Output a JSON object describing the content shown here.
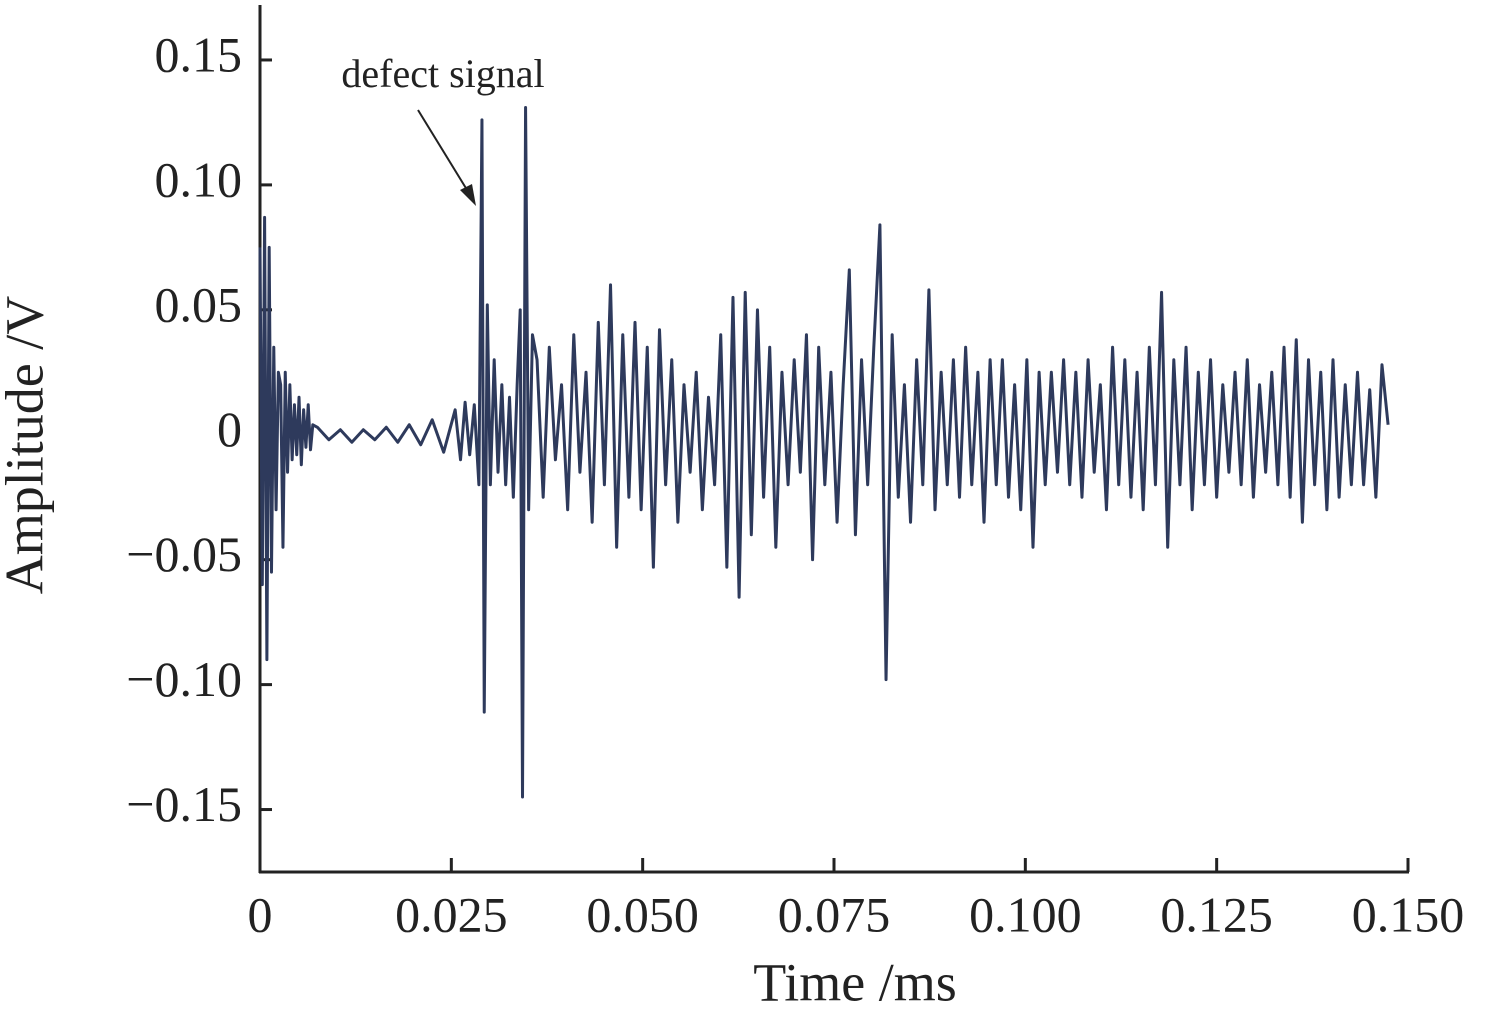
{
  "chart_data": {
    "type": "line",
    "xlabel": "Time /ms",
    "ylabel": "Amplitude /V",
    "annotation": "defect signal",
    "color": "#2e3a5c",
    "xlim": [
      0,
      0.15
    ],
    "ylim": [
      -0.175,
      0.172
    ],
    "xticks": [
      0,
      0.025,
      {
        "value": 0.05,
        "label": "0.050"
      },
      0.075,
      {
        "value": 0.1,
        "label": "0.100"
      },
      0.125,
      {
        "value": 0.15,
        "label": "0.150"
      }
    ],
    "yticks": [
      0.15,
      {
        "value": 0.1,
        "label": "0.10"
      },
      0.05,
      0,
      {
        "value": -0.05,
        "label": "−0.05"
      },
      {
        "value": -0.1,
        "label": "−0.10"
      },
      {
        "value": -0.15,
        "label": "−0.15"
      }
    ],
    "x": [
      0,
      0.0003,
      0.0006,
      0.0009,
      0.0012,
      0.0015,
      0.0018,
      0.0021,
      0.0024,
      0.0027,
      0.003,
      0.0033,
      0.0036,
      0.0039,
      0.0042,
      0.0045,
      0.0048,
      0.0051,
      0.0054,
      0.0057,
      0.006,
      0.0063,
      0.0066,
      0.0069,
      0.0075,
      0.009,
      0.0105,
      0.012,
      0.0135,
      0.015,
      0.0165,
      0.018,
      0.0195,
      0.021,
      0.0225,
      0.024,
      0.0255,
      0.0262,
      0.0268,
      0.0274,
      0.028,
      0.0286,
      0.029,
      0.0293,
      0.0297,
      0.0301,
      0.0306,
      0.0311,
      0.0316,
      0.0321,
      0.0326,
      0.0331,
      0.0336,
      0.034,
      0.0343,
      0.0347,
      0.0351,
      0.0356,
      0.0362,
      0.037,
      0.0378,
      0.0386,
      0.0394,
      0.0402,
      0.041,
      0.0418,
      0.0426,
      0.0434,
      0.0442,
      0.045,
      0.0458,
      0.0466,
      0.0474,
      0.0482,
      0.049,
      0.0498,
      0.0506,
      0.0514,
      0.0522,
      0.053,
      0.0538,
      0.0546,
      0.0554,
      0.0562,
      0.057,
      0.0578,
      0.0586,
      0.0594,
      0.0602,
      0.061,
      0.0618,
      0.0626,
      0.0634,
      0.0642,
      0.065,
      0.0658,
      0.0666,
      0.0674,
      0.0682,
      0.069,
      0.0698,
      0.0706,
      0.0714,
      0.0722,
      0.073,
      0.0738,
      0.0746,
      0.0754,
      0.0762,
      0.077,
      0.0778,
      0.0786,
      0.0794,
      0.0802,
      0.081,
      0.0818,
      0.0826,
      0.0834,
      0.0842,
      0.085,
      0.0858,
      0.0866,
      0.0874,
      0.0882,
      0.089,
      0.0898,
      0.0906,
      0.0914,
      0.0922,
      0.093,
      0.0938,
      0.0946,
      0.0954,
      0.0962,
      0.097,
      0.0978,
      0.0986,
      0.0994,
      0.1002,
      0.101,
      0.1018,
      0.1026,
      0.1034,
      0.1042,
      0.105,
      0.1058,
      0.1066,
      0.1074,
      0.1082,
      0.109,
      0.1098,
      0.1106,
      0.1114,
      0.1122,
      0.113,
      0.1138,
      0.1146,
      0.1154,
      0.1162,
      0.117,
      0.1178,
      0.1186,
      0.1194,
      0.1202,
      0.121,
      0.1218,
      0.1226,
      0.1234,
      0.1242,
      0.125,
      0.1258,
      0.1266,
      0.1274,
      0.1282,
      0.129,
      0.1298,
      0.1306,
      0.1314,
      0.1322,
      0.133,
      0.1338,
      0.1346,
      0.1354,
      0.1362,
      0.137,
      0.1378,
      0.1386,
      0.1394,
      0.1402,
      0.141,
      0.1418,
      0.1426,
      0.1434,
      0.1442,
      0.145,
      0.1458,
      0.1466,
      0.1474
    ],
    "values": [
      0.075,
      -0.06,
      0.087,
      -0.09,
      0.075,
      -0.055,
      0.035,
      -0.03,
      0.025,
      0.02,
      -0.045,
      0.025,
      -0.015,
      0.02,
      -0.01,
      0.012,
      -0.008,
      0.015,
      -0.012,
      0.01,
      -0.005,
      0.012,
      -0.006,
      0.004,
      0.003,
      -0.002,
      0.002,
      -0.003,
      0.002,
      -0.002,
      0.003,
      -0.003,
      0.004,
      -0.004,
      0.006,
      -0.007,
      0.01,
      -0.01,
      0.013,
      -0.008,
      0.012,
      -0.02,
      0.126,
      -0.111,
      0.052,
      -0.02,
      0.03,
      -0.015,
      0.02,
      -0.02,
      0.015,
      -0.025,
      0.02,
      0.05,
      -0.145,
      0.131,
      -0.03,
      0.04,
      0.03,
      -0.025,
      0.035,
      -0.01,
      0.02,
      -0.03,
      0.04,
      -0.015,
      0.025,
      -0.035,
      0.045,
      -0.02,
      0.06,
      -0.045,
      0.04,
      -0.025,
      0.045,
      -0.03,
      0.035,
      -0.053,
      0.042,
      -0.02,
      0.03,
      -0.035,
      0.02,
      -0.015,
      0.025,
      -0.03,
      0.015,
      -0.02,
      0.04,
      -0.053,
      0.055,
      -0.065,
      0.057,
      -0.04,
      0.05,
      -0.025,
      0.035,
      -0.045,
      0.025,
      -0.02,
      0.03,
      -0.015,
      0.04,
      -0.05,
      0.035,
      -0.02,
      0.025,
      -0.035,
      0.02,
      0.066,
      -0.04,
      0.03,
      -0.02,
      0.035,
      0.084,
      -0.098,
      0.04,
      -0.025,
      0.02,
      -0.035,
      0.03,
      -0.02,
      0.058,
      -0.03,
      0.025,
      -0.02,
      0.03,
      -0.025,
      0.035,
      -0.02,
      0.025,
      -0.035,
      0.03,
      -0.02,
      0.03,
      -0.025,
      0.02,
      -0.03,
      0.03,
      -0.045,
      0.025,
      -0.02,
      0.025,
      -0.015,
      0.03,
      -0.02,
      0.025,
      -0.025,
      0.03,
      -0.015,
      0.02,
      -0.03,
      0.035,
      -0.02,
      0.03,
      -0.025,
      0.025,
      -0.03,
      0.035,
      -0.02,
      0.057,
      -0.045,
      0.03,
      -0.02,
      0.035,
      -0.03,
      0.025,
      -0.02,
      0.03,
      -0.025,
      0.02,
      -0.015,
      0.025,
      -0.02,
      0.03,
      -0.025,
      0.02,
      -0.015,
      0.025,
      -0.02,
      0.035,
      -0.025,
      0.038,
      -0.035,
      0.03,
      -0.02,
      0.025,
      -0.03,
      0.03,
      -0.025,
      0.02,
      -0.02,
      0.025,
      -0.02,
      0.018,
      -0.025,
      0.028,
      0.004
    ]
  }
}
